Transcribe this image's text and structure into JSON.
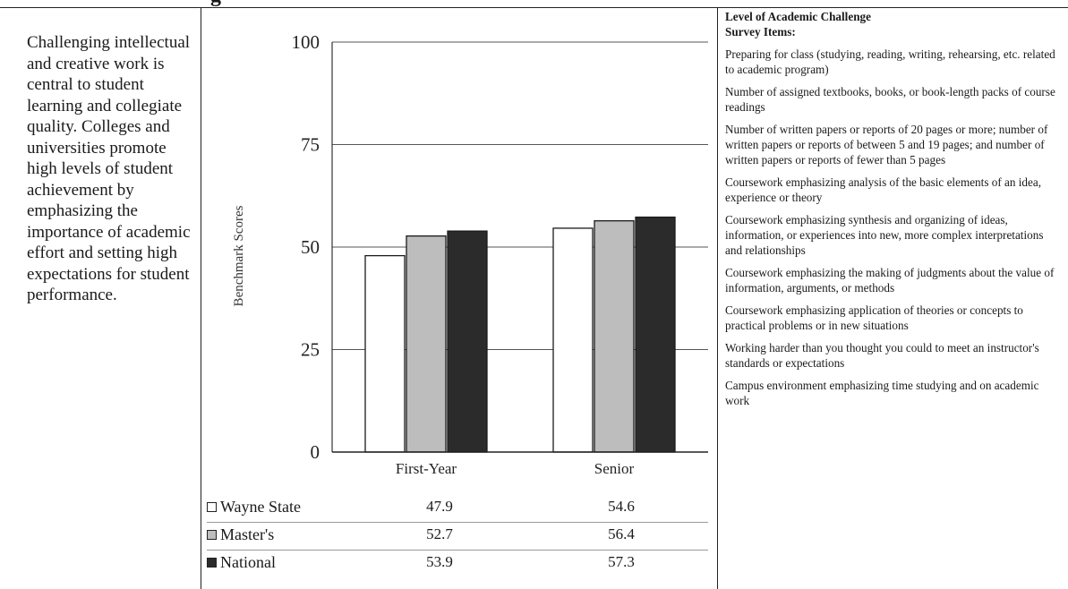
{
  "intro": {
    "text": "Challenging intellectual and creative work is central to student learning and collegiate quality. Colleges and universities promote high levels of student achievement by emphasizing the importance of academic effort and setting high expectations for student performance."
  },
  "chart_data": {
    "type": "bar",
    "categories": [
      "First-Year",
      "Senior"
    ],
    "series": [
      {
        "name": "Wayne State",
        "values": [
          47.9,
          54.6
        ],
        "color": "#ffffff"
      },
      {
        "name": "Master's",
        "values": [
          52.7,
          56.4
        ],
        "color": "#bdbdbd"
      },
      {
        "name": "National",
        "values": [
          53.9,
          57.3
        ],
        "color": "#2b2b2b"
      }
    ],
    "ylabel": "Benchmark Scores",
    "xlabel": "",
    "ylim": [
      0,
      100
    ],
    "yticks": [
      0,
      25,
      50,
      75,
      100
    ],
    "grid": true
  },
  "table": {
    "rows": [
      {
        "name": "Wayne State",
        "first_year": "47.9",
        "senior": "54.6",
        "swatch": "#ffffff"
      },
      {
        "name": "Master's",
        "first_year": "52.7",
        "senior": "56.4",
        "swatch": "#bdbdbd"
      },
      {
        "name": "National",
        "first_year": "53.9",
        "senior": "57.3",
        "swatch": "#2b2b2b"
      }
    ]
  },
  "survey": {
    "heading_line1": "Level of Academic Challenge",
    "heading_line2": "Survey Items:",
    "items": [
      "Preparing for class (studying, reading, writing, rehearsing, etc. related to academic program)",
      "Number of assigned textbooks, books, or book-length packs of course readings",
      "Number of written papers or reports of 20 pages or more; number of written papers or reports of between 5 and 19 pages; and number of written papers or reports of fewer than 5 pages",
      "Coursework emphasizing analysis of the basic elements of an idea, experience or theory",
      "Coursework emphasizing synthesis and organizing of ideas, information, or experiences into new, more complex interpretations and relationships",
      "Coursework emphasizing the making of judgments about the value of information, arguments, or methods",
      "Coursework emphasizing application of theories or concepts to practical problems or in new situations",
      "Working harder than you thought you could to meet an instructor's standards or expectations",
      "Campus environment emphasizing time studying and on academic work"
    ]
  },
  "heading_fragment": "g"
}
